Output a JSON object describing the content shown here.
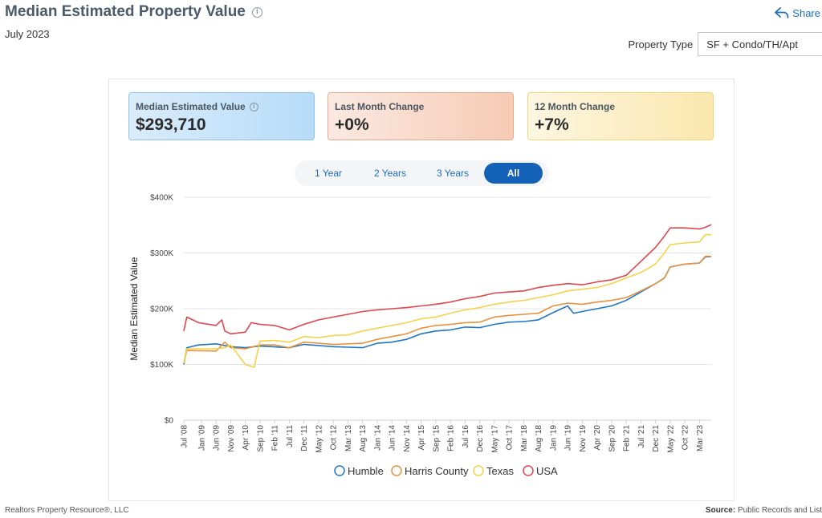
{
  "header": {
    "title": "Median Estimated Property Value",
    "subtitle": "July 2023",
    "share_label": "Share",
    "property_type_label": "Property Type",
    "property_type_value": "SF + Condo/TH/Apt"
  },
  "kpis": [
    {
      "label": "Median Estimated Value",
      "value": "$293,710"
    },
    {
      "label": "Last Month Change",
      "value": "+0%"
    },
    {
      "label": "12 Month Change",
      "value": "+7%"
    }
  ],
  "range_tabs": [
    "1 Year",
    "2 Years",
    "3 Years",
    "All"
  ],
  "active_range": "All",
  "footer": {
    "left": "Realtors Property Resource®, LLC",
    "source_label": "Source:",
    "source_value": "Public Records and List"
  },
  "colors": {
    "humble": "#1f77c4",
    "harris": "#e8913c",
    "texas": "#f5d24b",
    "usa": "#e0474c"
  },
  "chart_data": {
    "type": "line",
    "ylabel": "Median Estimated Value",
    "ylim": [
      0,
      400000
    ],
    "yticks": [
      0,
      100000,
      200000,
      300000,
      400000
    ],
    "ytick_labels": [
      "$0",
      "$100K",
      "$200K",
      "$300K",
      "$400K"
    ],
    "xtick_labels": [
      "Jul '08",
      "Jan '09",
      "Jun '09",
      "Nov '09",
      "Apr '10",
      "Sep '10",
      "Feb '11",
      "Jul '11",
      "Dec '11",
      "May '12",
      "Oct '12",
      "Mar '13",
      "Aug '13",
      "Jan '14",
      "Jun '14",
      "Nov '14",
      "Apr '15",
      "Sep '15",
      "Feb '16",
      "Jul '16",
      "Dec '16",
      "May '17",
      "Oct '17",
      "Mar '18",
      "Aug '18",
      "Jan '19",
      "Jun '19",
      "Nov '19",
      "Apr '20",
      "Sep '20",
      "Feb '21",
      "Jul '21",
      "Dec '21",
      "May '22",
      "Oct '22",
      "Mar '23"
    ],
    "x_start": "Jul '08",
    "x_end": "Jul '23",
    "legend_position": "bottom",
    "grid": true,
    "series": [
      {
        "name": "Humble",
        "color": "#1f77c4",
        "points": [
          [
            "Jul '08",
            100000
          ],
          [
            "Aug '08",
            130000
          ],
          [
            "Dec '08",
            135000
          ],
          [
            "Jun '09",
            137000
          ],
          [
            "Nov '09",
            132000
          ],
          [
            "Apr '10",
            130000
          ],
          [
            "Sep '10",
            133000
          ],
          [
            "Jul '11",
            130000
          ],
          [
            "Dec '11",
            136000
          ],
          [
            "May '12",
            134000
          ],
          [
            "Oct '12",
            132000
          ],
          [
            "Mar '13",
            131000
          ],
          [
            "Aug '13",
            130000
          ],
          [
            "Jan '14",
            138000
          ],
          [
            "Jun '14",
            140000
          ],
          [
            "Nov '14",
            145000
          ],
          [
            "Apr '15",
            155000
          ],
          [
            "Sep '15",
            160000
          ],
          [
            "Feb '16",
            162000
          ],
          [
            "Jul '16",
            167000
          ],
          [
            "Dec '16",
            166000
          ],
          [
            "May '17",
            172000
          ],
          [
            "Oct '17",
            176000
          ],
          [
            "Mar '18",
            177000
          ],
          [
            "Aug '18",
            180000
          ],
          [
            "Jan '19",
            193000
          ],
          [
            "Jun '19",
            205000
          ],
          [
            "Aug '19",
            192000
          ],
          [
            "Nov '19",
            195000
          ],
          [
            "Apr '20",
            200000
          ],
          [
            "Sep '20",
            205000
          ],
          [
            "Feb '21",
            215000
          ],
          [
            "Jul '21",
            230000
          ],
          [
            "Dec '21",
            245000
          ],
          [
            "Mar '22",
            255000
          ],
          [
            "May '22",
            275000
          ],
          [
            "Oct '22",
            280000
          ],
          [
            "Mar '23",
            282000
          ],
          [
            "May '23",
            293000
          ],
          [
            "Jul '23",
            293710
          ]
        ]
      },
      {
        "name": "Harris County",
        "color": "#e8913c",
        "points": [
          [
            "Jul '08",
            102000
          ],
          [
            "Aug '08",
            125000
          ],
          [
            "Jun '09",
            124000
          ],
          [
            "Sep '09",
            140000
          ],
          [
            "Nov '09",
            130000
          ],
          [
            "Apr '10",
            128000
          ],
          [
            "Sep '10",
            135000
          ],
          [
            "Feb '11",
            135000
          ],
          [
            "Jul '11",
            130000
          ],
          [
            "Dec '11",
            140000
          ],
          [
            "May '12",
            138000
          ],
          [
            "Oct '12",
            136000
          ],
          [
            "Aug '13",
            138000
          ],
          [
            "Jan '14",
            145000
          ],
          [
            "Nov '14",
            155000
          ],
          [
            "Apr '15",
            165000
          ],
          [
            "Sep '15",
            170000
          ],
          [
            "Feb '16",
            172000
          ],
          [
            "Jul '16",
            175000
          ],
          [
            "Dec '16",
            176000
          ],
          [
            "May '17",
            185000
          ],
          [
            "Oct '17",
            188000
          ],
          [
            "Mar '18",
            190000
          ],
          [
            "Aug '18",
            192000
          ],
          [
            "Jan '19",
            205000
          ],
          [
            "Jun '19",
            210000
          ],
          [
            "Nov '19",
            208000
          ],
          [
            "Apr '20",
            212000
          ],
          [
            "Sep '20",
            215000
          ],
          [
            "Feb '21",
            220000
          ],
          [
            "Jul '21",
            232000
          ],
          [
            "Dec '21",
            245000
          ],
          [
            "Mar '22",
            255000
          ],
          [
            "May '22",
            275000
          ],
          [
            "Oct '22",
            280000
          ],
          [
            "Mar '23",
            282000
          ],
          [
            "May '23",
            294000
          ],
          [
            "Jul '23",
            294000
          ]
        ]
      },
      {
        "name": "Texas",
        "color": "#f5d24b",
        "points": [
          [
            "Jul '08",
            103000
          ],
          [
            "Aug '08",
            128000
          ],
          [
            "Jun '09",
            128000
          ],
          [
            "Sep '09",
            130000
          ],
          [
            "Nov '09",
            135000
          ],
          [
            "Apr '10",
            100000
          ],
          [
            "Jul '10",
            95000
          ],
          [
            "Sep '10",
            142000
          ],
          [
            "Feb '11",
            143000
          ],
          [
            "Jul '11",
            140000
          ],
          [
            "Dec '11",
            150000
          ],
          [
            "May '12",
            148000
          ],
          [
            "Oct '12",
            152000
          ],
          [
            "Mar '13",
            153000
          ],
          [
            "Aug '13",
            160000
          ],
          [
            "Jan '14",
            165000
          ],
          [
            "Jun '14",
            170000
          ],
          [
            "Nov '14",
            175000
          ],
          [
            "Apr '15",
            182000
          ],
          [
            "Sep '15",
            185000
          ],
          [
            "Feb '16",
            192000
          ],
          [
            "Jul '16",
            198000
          ],
          [
            "Dec '16",
            202000
          ],
          [
            "May '17",
            208000
          ],
          [
            "Oct '17",
            212000
          ],
          [
            "Mar '18",
            215000
          ],
          [
            "Aug '18",
            220000
          ],
          [
            "Jan '19",
            225000
          ],
          [
            "Jun '19",
            232000
          ],
          [
            "Nov '19",
            235000
          ],
          [
            "Apr '20",
            238000
          ],
          [
            "Sep '20",
            245000
          ],
          [
            "Feb '21",
            255000
          ],
          [
            "Jul '21",
            265000
          ],
          [
            "Dec '21",
            280000
          ],
          [
            "Mar '22",
            300000
          ],
          [
            "May '22",
            315000
          ],
          [
            "Oct '22",
            318000
          ],
          [
            "Mar '23",
            320000
          ],
          [
            "May '23",
            333000
          ],
          [
            "Jul '23",
            333000
          ]
        ]
      },
      {
        "name": "USA",
        "color": "#e0474c",
        "points": [
          [
            "Jul '08",
            160000
          ],
          [
            "Aug '08",
            185000
          ],
          [
            "Dec '08",
            175000
          ],
          [
            "Jun '09",
            170000
          ],
          [
            "Aug '09",
            180000
          ],
          [
            "Sep '09",
            160000
          ],
          [
            "Nov '09",
            155000
          ],
          [
            "Apr '10",
            158000
          ],
          [
            "Jun '10",
            175000
          ],
          [
            "Sep '10",
            172000
          ],
          [
            "Feb '11",
            170000
          ],
          [
            "Jul '11",
            162000
          ],
          [
            "Dec '11",
            172000
          ],
          [
            "May '12",
            180000
          ],
          [
            "Oct '12",
            185000
          ],
          [
            "Mar '13",
            190000
          ],
          [
            "Aug '13",
            195000
          ],
          [
            "Jan '14",
            198000
          ],
          [
            "Jun '14",
            200000
          ],
          [
            "Nov '14",
            202000
          ],
          [
            "Apr '15",
            205000
          ],
          [
            "Sep '15",
            208000
          ],
          [
            "Feb '16",
            212000
          ],
          [
            "Jul '16",
            218000
          ],
          [
            "Dec '16",
            222000
          ],
          [
            "May '17",
            228000
          ],
          [
            "Oct '17",
            230000
          ],
          [
            "Mar '18",
            232000
          ],
          [
            "Aug '18",
            238000
          ],
          [
            "Jan '19",
            242000
          ],
          [
            "Jun '19",
            245000
          ],
          [
            "Nov '19",
            243000
          ],
          [
            "Apr '20",
            248000
          ],
          [
            "Sep '20",
            252000
          ],
          [
            "Feb '21",
            260000
          ],
          [
            "Jul '21",
            285000
          ],
          [
            "Dec '21",
            310000
          ],
          [
            "Mar '22",
            330000
          ],
          [
            "May '22",
            345000
          ],
          [
            "Oct '22",
            345000
          ],
          [
            "Mar '23",
            343000
          ],
          [
            "May '23",
            346000
          ],
          [
            "Jul '23",
            351000
          ]
        ]
      }
    ]
  }
}
